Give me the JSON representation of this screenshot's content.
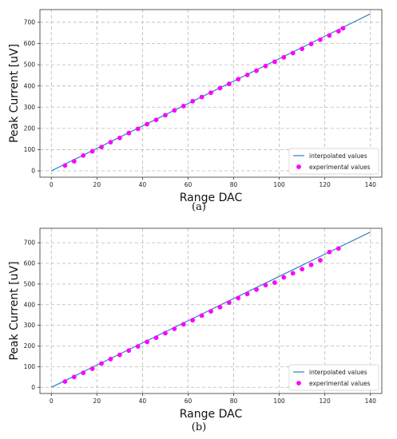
{
  "chart_data": [
    {
      "type": "scatter",
      "panel_label": "a",
      "xlabel": "Range DAC",
      "ylabel": "Peak Current [uV]",
      "xlim": [
        -5,
        145
      ],
      "ylim": [
        -30,
        760
      ],
      "xticks": [
        0,
        20,
        40,
        60,
        80,
        100,
        120,
        140
      ],
      "yticks": [
        0,
        100,
        200,
        300,
        400,
        500,
        600,
        700
      ],
      "grid": true,
      "legend_position": "bottom-right",
      "series": [
        {
          "name": "interpolated values",
          "kind": "line",
          "color": "#3a86c8",
          "x": [
            0,
            140
          ],
          "y": [
            0,
            740
          ]
        },
        {
          "name": "experimental values",
          "kind": "scatter",
          "color": "#ff00ff",
          "x": [
            6,
            10,
            14,
            18,
            22,
            26,
            30,
            34,
            38,
            42,
            46,
            50,
            54,
            58,
            62,
            66,
            70,
            74,
            78,
            82,
            86,
            90,
            94,
            98,
            102,
            106,
            110,
            114,
            118,
            122,
            126,
            128
          ],
          "y": [
            25,
            45,
            72,
            92,
            112,
            135,
            155,
            178,
            198,
            220,
            240,
            262,
            285,
            305,
            328,
            348,
            368,
            390,
            410,
            432,
            452,
            472,
            494,
            514,
            535,
            555,
            575,
            598,
            618,
            638,
            658,
            672
          ]
        }
      ]
    },
    {
      "type": "scatter",
      "panel_label": "b",
      "xlabel": "Range DAC",
      "ylabel": "Peak Current [uV]",
      "xlim": [
        -5,
        145
      ],
      "ylim": [
        -30,
        770
      ],
      "xticks": [
        0,
        20,
        40,
        60,
        80,
        100,
        120,
        140
      ],
      "yticks": [
        0,
        100,
        200,
        300,
        400,
        500,
        600,
        700
      ],
      "grid": true,
      "legend_position": "bottom-right",
      "series": [
        {
          "name": "interpolated values",
          "kind": "line",
          "color": "#3a86c8",
          "x": [
            0,
            140
          ],
          "y": [
            0,
            752
          ]
        },
        {
          "name": "experimental values",
          "kind": "scatter",
          "color": "#ff00ff",
          "x": [
            6,
            10,
            14,
            18,
            22,
            26,
            30,
            34,
            38,
            42,
            46,
            50,
            54,
            58,
            62,
            66,
            70,
            74,
            78,
            82,
            86,
            90,
            94,
            98,
            102,
            106,
            110,
            114,
            118,
            122,
            126
          ],
          "y": [
            28,
            50,
            70,
            90,
            115,
            137,
            157,
            178,
            198,
            220,
            240,
            262,
            283,
            305,
            325,
            347,
            368,
            388,
            410,
            432,
            452,
            473,
            495,
            507,
            532,
            552,
            572,
            593,
            615,
            655,
            672
          ]
        }
      ]
    }
  ],
  "captions": {
    "a": "(a)",
    "b": "(b)"
  }
}
